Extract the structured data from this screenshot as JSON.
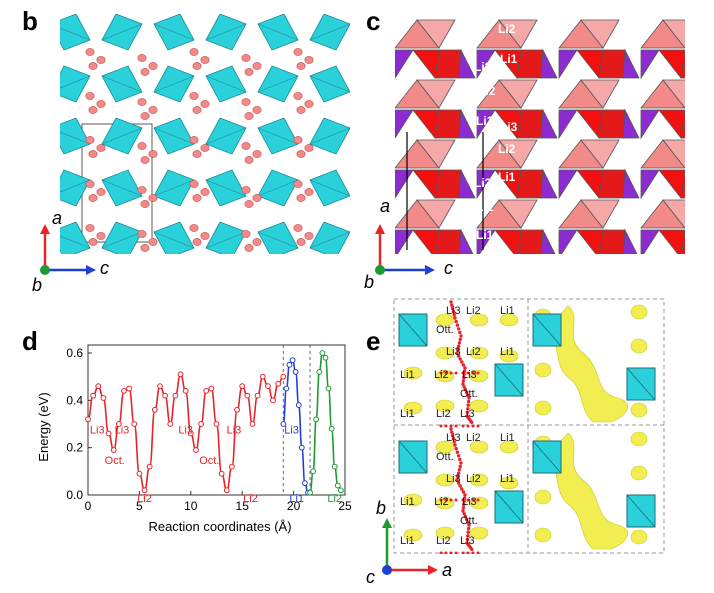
{
  "panels": {
    "b": {
      "letter": "b",
      "axes": {
        "vertical": "a",
        "horizontal": "c",
        "out": "b"
      }
    },
    "c": {
      "letter": "c",
      "axes": {
        "vertical": "a",
        "horizontal": "c",
        "out": "b"
      },
      "site_labels": [
        "Li2",
        "Li3",
        "Li1",
        "Li2",
        "Li1",
        "Li3",
        "Li2",
        "Li3",
        "Li1",
        "Li2",
        "Li1"
      ]
    },
    "d": {
      "letter": "d"
    },
    "e": {
      "letter": "e",
      "axes": {
        "vertical": "b",
        "horizontal": "a",
        "out": "c"
      },
      "site_labels": {
        "top": [
          "Li3",
          "Li2",
          "Li1",
          "Ott.",
          "Li3",
          "Li2",
          "Li1",
          "Li1",
          "Li2",
          "Li3",
          "Ott.",
          "Li1",
          "Li2",
          "Li3"
        ],
        "bottom": [
          "Li3",
          "Li2",
          "Li1",
          "Ott.",
          "Li3",
          "Li2",
          "Li1",
          "Li1",
          "Li2",
          "Li3",
          "Ott.",
          "Li1",
          "Li2",
          "Li3"
        ]
      }
    }
  },
  "chart_data": {
    "type": "line",
    "xlabel": "Reaction coordinates (Å)",
    "ylabel": "Energy (eV)",
    "xlim": [
      0,
      25
    ],
    "ylim": [
      0,
      0.6
    ],
    "xticks": [
      "0",
      "5",
      "10",
      "15",
      "20",
      "25"
    ],
    "yticks": [
      "0.0",
      "0.2",
      "0.4",
      "0.6"
    ],
    "dividers_x": [
      19.0,
      21.6
    ],
    "series": [
      {
        "color": "#e8232a",
        "x": [
          0,
          0.5,
          1.0,
          1.5,
          2.0,
          2.5,
          3.0,
          3.5,
          4.0,
          4.5,
          5.0,
          5.5,
          6.0,
          6.5,
          7.0,
          7.5,
          8.0,
          8.5,
          9.0,
          9.5,
          10.0,
          10.5,
          11.0,
          11.5,
          12.0,
          12.5,
          13.0,
          13.5,
          14.0,
          14.5,
          15.0,
          15.5,
          16.0,
          16.5,
          17.0,
          17.5,
          18.0,
          18.5,
          19.0
        ],
        "y": [
          0.32,
          0.42,
          0.46,
          0.41,
          0.26,
          0.19,
          0.3,
          0.44,
          0.45,
          0.3,
          0.09,
          0.02,
          0.12,
          0.36,
          0.46,
          0.42,
          0.3,
          0.42,
          0.51,
          0.44,
          0.26,
          0.19,
          0.3,
          0.44,
          0.45,
          0.3,
          0.09,
          0.02,
          0.12,
          0.36,
          0.46,
          0.42,
          0.3,
          0.42,
          0.5,
          0.46,
          0.4,
          0.47,
          0.5
        ]
      },
      {
        "color": "#1f3fd6",
        "x": [
          19.0,
          19.3,
          19.6,
          19.9,
          20.2,
          20.5,
          20.8,
          21.1,
          21.4
        ],
        "y": [
          0.3,
          0.45,
          0.55,
          0.57,
          0.52,
          0.38,
          0.2,
          0.05,
          0.01
        ]
      },
      {
        "color": "#1d9a32",
        "x": [
          21.6,
          21.9,
          22.2,
          22.5,
          22.8,
          23.1,
          23.4,
          23.7,
          24.0,
          24.3,
          24.6
        ],
        "y": [
          0.01,
          0.1,
          0.32,
          0.52,
          0.6,
          0.58,
          0.45,
          0.28,
          0.12,
          0.04,
          0.02
        ]
      }
    ],
    "annotations": [
      {
        "text": "Li3",
        "x": 0.9,
        "y": 0.26,
        "color": "#e8232a"
      },
      {
        "text": "Li3",
        "x": 3.3,
        "y": 0.26,
        "color": "#e8232a"
      },
      {
        "text": "Oct.",
        "x": 2.6,
        "y": 0.13,
        "color": "#e8232a"
      },
      {
        "text": "Li2",
        "x": 5.5,
        "y": -0.03,
        "color": "#e8232a"
      },
      {
        "text": "Li3",
        "x": 9.5,
        "y": 0.26,
        "color": "#e8232a"
      },
      {
        "text": "Li3",
        "x": 14.2,
        "y": 0.26,
        "color": "#e8232a"
      },
      {
        "text": "Oct.",
        "x": 11.8,
        "y": 0.13,
        "color": "#e8232a"
      },
      {
        "text": "Li2",
        "x": 15.8,
        "y": -0.03,
        "color": "#e8232a"
      },
      {
        "text": "Li3",
        "x": 19.8,
        "y": 0.26,
        "color": "#1f3fd6"
      },
      {
        "text": "Li1",
        "x": 20.3,
        "y": -0.03,
        "color": "#1f3fd6"
      },
      {
        "text": "Li2",
        "x": 24.0,
        "y": -0.03,
        "color": "#1d9a32"
      }
    ]
  },
  "colors": {
    "cyan": "#2ad0da",
    "pink": "#f28a8a",
    "red": "#f21010",
    "purple": "#8b2bd0",
    "yellow": "#f2ee52"
  }
}
